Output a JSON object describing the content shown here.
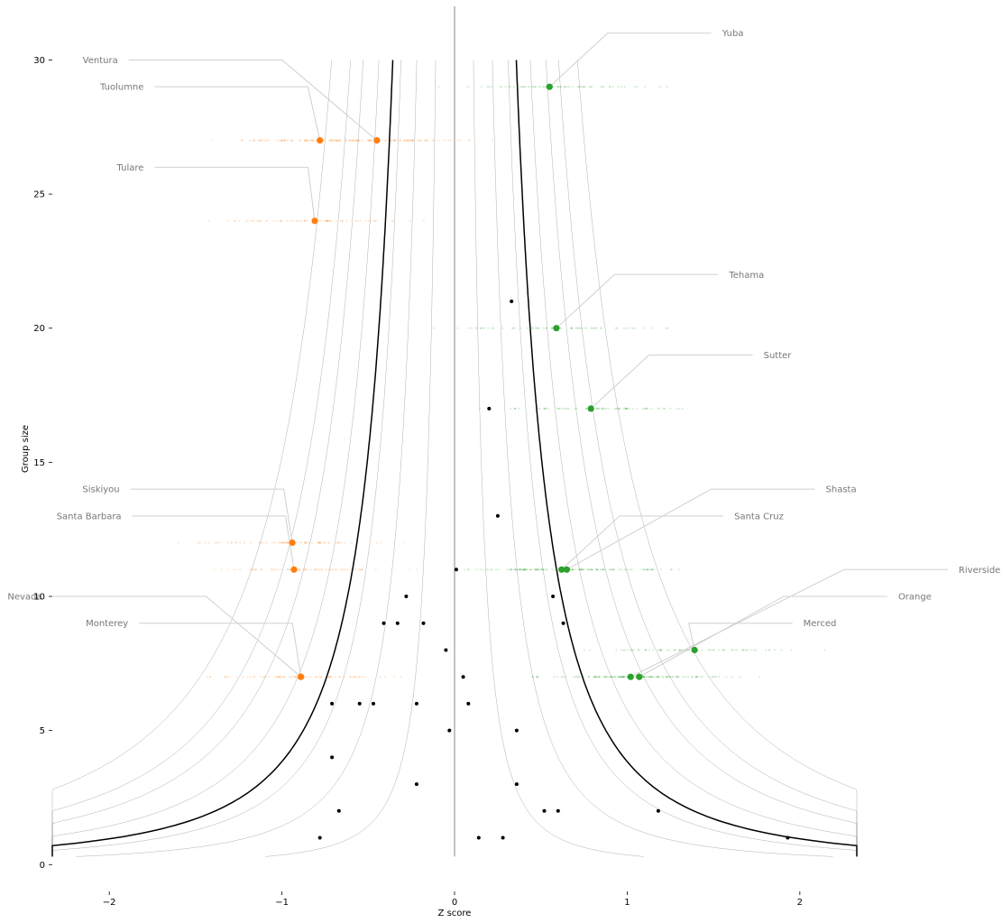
{
  "chart_data": {
    "type": "scatter",
    "xlabel": "Z score",
    "ylabel": "Group size",
    "xlim": [
      -2.33,
      2.33
    ],
    "ylim": [
      -1.0,
      32.0
    ],
    "xticks": [
      "−2",
      "−1",
      "0",
      "1",
      "2"
    ],
    "xtick_values": [
      -2,
      -1,
      0,
      1,
      2
    ],
    "yticks": [
      "0",
      "5",
      "10",
      "15",
      "20",
      "25",
      "30"
    ],
    "ytick_values": [
      0,
      5,
      10,
      15,
      20,
      25,
      30
    ],
    "grid": false,
    "center_line_x": 0,
    "funnel": {
      "bold_k": 1.96,
      "thin_k": [
        0.6,
        1.2,
        1.7,
        2.4,
        2.9,
        3.3,
        3.9
      ],
      "y_range": [
        0.3,
        30
      ]
    },
    "colors": {
      "high": "#2ca02c",
      "low": "#ff7f0e",
      "neutral": "#000000",
      "label": "#777777",
      "leader": "#d0d0d0",
      "funnel": "#000000",
      "center": "#b0b0b0"
    },
    "highlighted": [
      {
        "name": "Yuba",
        "x": 0.55,
        "y": 29,
        "group": "high",
        "label_x": 1.55,
        "label_y": 31
      },
      {
        "name": "Ventura",
        "x": -0.45,
        "y": 27,
        "group": "low",
        "label_x": -1.95,
        "label_y": 30
      },
      {
        "name": "Tuolumne",
        "x": -0.78,
        "y": 27,
        "group": "low",
        "label_x": -1.8,
        "label_y": 29
      },
      {
        "name": "Tulare",
        "x": -0.81,
        "y": 24,
        "group": "low",
        "label_x": -1.8,
        "label_y": 26
      },
      {
        "name": "Tehama",
        "x": 0.59,
        "y": 20,
        "group": "high",
        "label_x": 1.59,
        "label_y": 22
      },
      {
        "name": "Sutter",
        "x": 0.79,
        "y": 17,
        "group": "high",
        "label_x": 1.79,
        "label_y": 19
      },
      {
        "name": "Siskiyou",
        "x": -0.94,
        "y": 12,
        "group": "low",
        "label_x": -1.94,
        "label_y": 14
      },
      {
        "name": "Santa Barbara",
        "x": -0.93,
        "y": 11,
        "group": "low",
        "label_x": -1.93,
        "label_y": 13
      },
      {
        "name": "Shasta",
        "x": 0.65,
        "y": 11,
        "group": "high",
        "label_x": 2.15,
        "label_y": 14
      },
      {
        "name": "Santa Cruz",
        "x": 0.62,
        "y": 11,
        "group": "high",
        "label_x": 1.62,
        "label_y": 13
      },
      {
        "name": "Riverside",
        "x": 1.02,
        "y": 7,
        "group": "high",
        "label_x": 2.92,
        "label_y": 11
      },
      {
        "name": "Orange",
        "x": 1.07,
        "y": 7,
        "group": "high",
        "label_x": 2.57,
        "label_y": 10
      },
      {
        "name": "Merced",
        "x": 1.39,
        "y": 8,
        "group": "high",
        "label_x": 2.02,
        "label_y": 9
      },
      {
        "name": "Nevada",
        "x": -0.89,
        "y": 7,
        "group": "low",
        "label_x": -2.39,
        "label_y": 10
      },
      {
        "name": "Monterey",
        "x": -0.89,
        "y": 7,
        "group": "low",
        "label_x": -1.89,
        "label_y": 9
      }
    ],
    "other_points": [
      {
        "x": 0.33,
        "y": 21
      },
      {
        "x": 0.2,
        "y": 17
      },
      {
        "x": 0.25,
        "y": 13
      },
      {
        "x": 0.01,
        "y": 11
      },
      {
        "x": -0.28,
        "y": 10
      },
      {
        "x": 0.57,
        "y": 10
      },
      {
        "x": -0.41,
        "y": 9
      },
      {
        "x": -0.33,
        "y": 9
      },
      {
        "x": -0.18,
        "y": 9
      },
      {
        "x": 0.63,
        "y": 9
      },
      {
        "x": -0.05,
        "y": 8
      },
      {
        "x": 0.05,
        "y": 7
      },
      {
        "x": -0.71,
        "y": 6
      },
      {
        "x": -0.55,
        "y": 6
      },
      {
        "x": -0.47,
        "y": 6
      },
      {
        "x": -0.22,
        "y": 6
      },
      {
        "x": 0.08,
        "y": 6
      },
      {
        "x": -0.03,
        "y": 5
      },
      {
        "x": 0.36,
        "y": 5
      },
      {
        "x": -0.71,
        "y": 4
      },
      {
        "x": -0.22,
        "y": 3
      },
      {
        "x": 0.36,
        "y": 3
      },
      {
        "x": -0.67,
        "y": 2
      },
      {
        "x": 0.52,
        "y": 2
      },
      {
        "x": 0.6,
        "y": 2
      },
      {
        "x": 1.18,
        "y": 2
      },
      {
        "x": -0.78,
        "y": 1
      },
      {
        "x": 0.14,
        "y": 1
      },
      {
        "x": 0.28,
        "y": 1
      },
      {
        "x": 1.93,
        "y": 1
      }
    ]
  }
}
